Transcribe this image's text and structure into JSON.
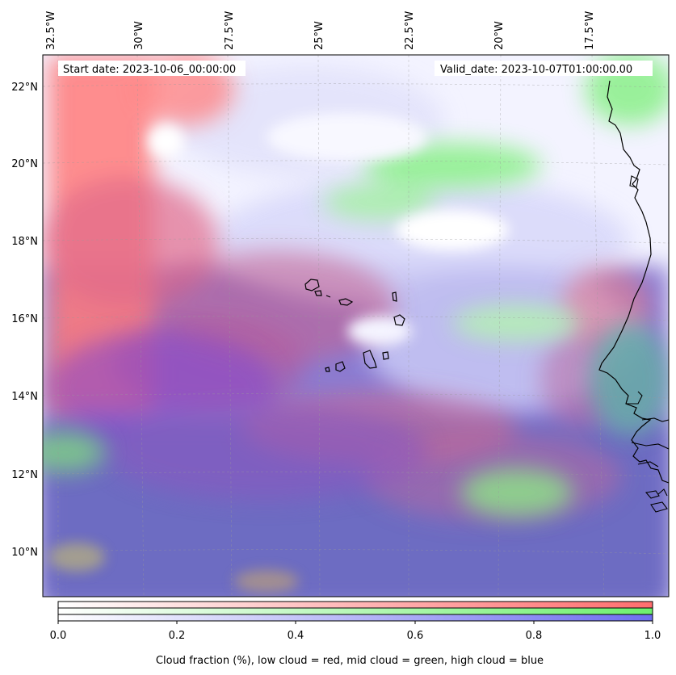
{
  "map": {
    "start_label": "Start date: 2023-10-06_00:00:00",
    "valid_label": "Valid_date: 2023-10-07T01:00:00.00",
    "lon_ticks": [
      "32.5°W",
      "30°W",
      "27.5°W",
      "25°W",
      "22.5°W",
      "20°W",
      "17.5°W"
    ],
    "lat_ticks": [
      "22°N",
      "20°N",
      "18°N",
      "16°N",
      "14°N",
      "12°N",
      "10°N"
    ],
    "layers": {
      "low_cloud_color": "#ff6e6e",
      "mid_cloud_color": "#6ef06e",
      "high_cloud_color": "#6e6ef0"
    }
  },
  "colorbar": {
    "ticks": [
      "0.0",
      "0.2",
      "0.4",
      "0.6",
      "0.8",
      "1.0"
    ],
    "label": "Cloud fraction (%), low cloud = red, mid cloud = green, high cloud = blue",
    "range": [
      0,
      1
    ],
    "red_color": "#ff6e6e",
    "green_color": "#6ef06e",
    "blue_color": "#6e6ef0"
  }
}
